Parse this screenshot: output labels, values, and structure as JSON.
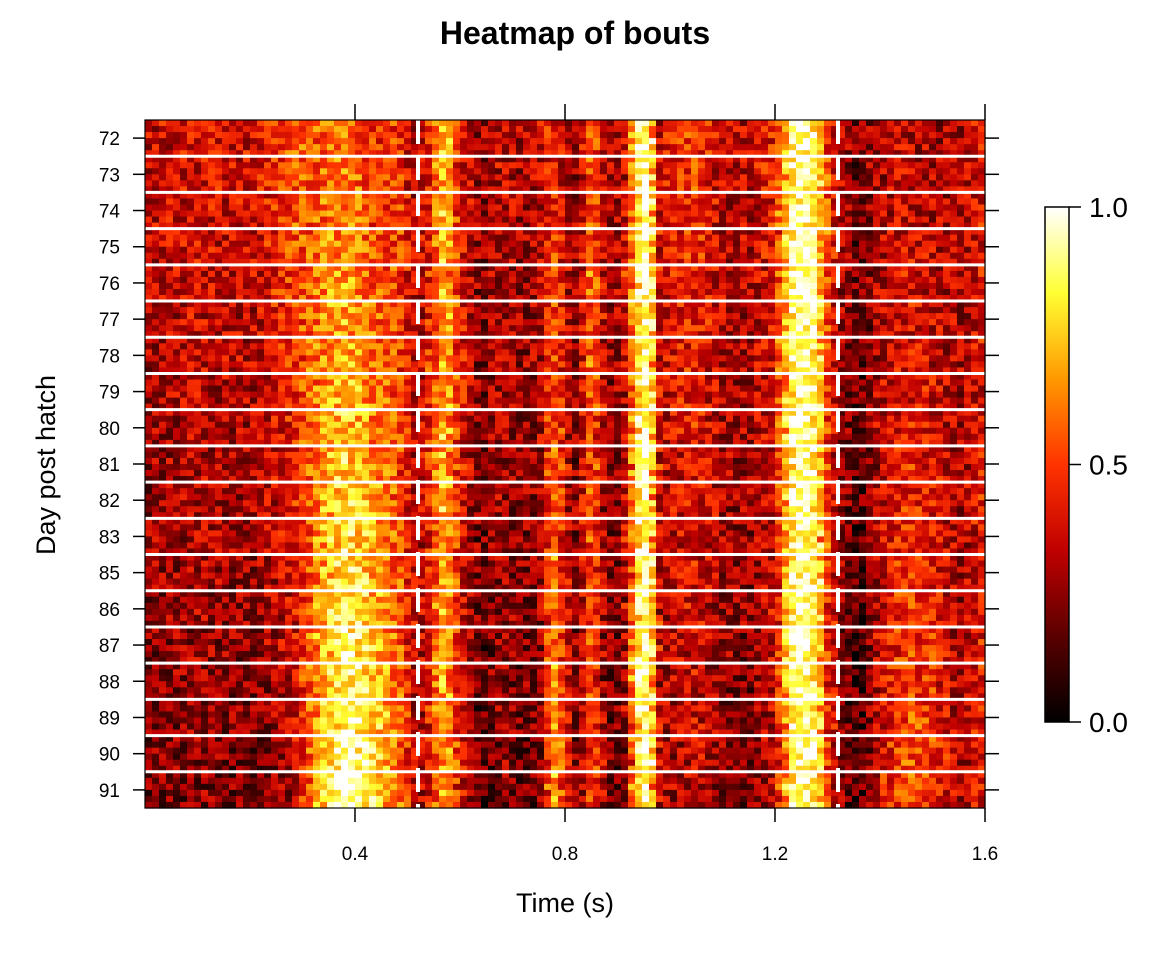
{
  "chart_data": {
    "type": "heatmap",
    "title": "Heatmap of bouts",
    "xlabel": "Time (s)",
    "ylabel": "Day post hatch",
    "xlim": [
      0.0,
      1.6
    ],
    "x_ticks": [
      "0.4",
      "0.8",
      "1.2",
      "1.6"
    ],
    "x_tick_values": [
      0.4,
      0.8,
      1.2,
      1.6
    ],
    "y_categories": [
      "72",
      "73",
      "74",
      "75",
      "76",
      "77",
      "78",
      "79",
      "80",
      "81",
      "82",
      "83",
      "85",
      "86",
      "87",
      "88",
      "89",
      "90",
      "91"
    ],
    "rows_per_day": 6,
    "colorscale": {
      "name": "heat",
      "range": [
        0.0,
        1.0
      ],
      "ticks": [
        "0.0",
        "0.5",
        "1.0"
      ],
      "tick_values": [
        0.0,
        0.5,
        1.0
      ],
      "colors": [
        "#000000",
        "#5a0000",
        "#c00000",
        "#ff3300",
        "#ff9900",
        "#ffff33",
        "#ffffff"
      ]
    },
    "dashed_reference_lines_x": [
      0.52,
      1.32
    ],
    "row_separator_color": "#ffffff",
    "profile_points_x": [
      0.0,
      0.1,
      0.2,
      0.28,
      0.33,
      0.36,
      0.38,
      0.41,
      0.44,
      0.48,
      0.52,
      0.55,
      0.57,
      0.6,
      0.64,
      0.68,
      0.72,
      0.75,
      0.78,
      0.82,
      0.85,
      0.88,
      0.91,
      0.94,
      0.96,
      0.98,
      1.01,
      1.05,
      1.1,
      1.15,
      1.2,
      1.23,
      1.25,
      1.28,
      1.3,
      1.33,
      1.36,
      1.4,
      1.45,
      1.5,
      1.55,
      1.6
    ],
    "early_profile_values": [
      0.35,
      0.4,
      0.38,
      0.55,
      0.55,
      0.6,
      0.6,
      0.55,
      0.45,
      0.5,
      0.3,
      0.55,
      0.75,
      0.45,
      0.25,
      0.35,
      0.3,
      0.35,
      0.45,
      0.25,
      0.6,
      0.3,
      0.35,
      0.85,
      0.95,
      0.35,
      0.45,
      0.5,
      0.35,
      0.35,
      0.45,
      0.85,
      0.95,
      0.85,
      0.5,
      0.3,
      0.2,
      0.3,
      0.35,
      0.3,
      0.3,
      0.4
    ],
    "late_profile_values": [
      0.2,
      0.25,
      0.2,
      0.3,
      0.7,
      0.85,
      0.95,
      0.9,
      0.8,
      0.6,
      0.3,
      0.5,
      0.75,
      0.4,
      0.15,
      0.25,
      0.2,
      0.2,
      0.7,
      0.2,
      0.55,
      0.2,
      0.2,
      0.85,
      0.95,
      0.3,
      0.3,
      0.35,
      0.25,
      0.2,
      0.35,
      0.85,
      0.95,
      0.85,
      0.45,
      0.2,
      0.1,
      0.4,
      0.55,
      0.5,
      0.3,
      0.45
    ]
  }
}
